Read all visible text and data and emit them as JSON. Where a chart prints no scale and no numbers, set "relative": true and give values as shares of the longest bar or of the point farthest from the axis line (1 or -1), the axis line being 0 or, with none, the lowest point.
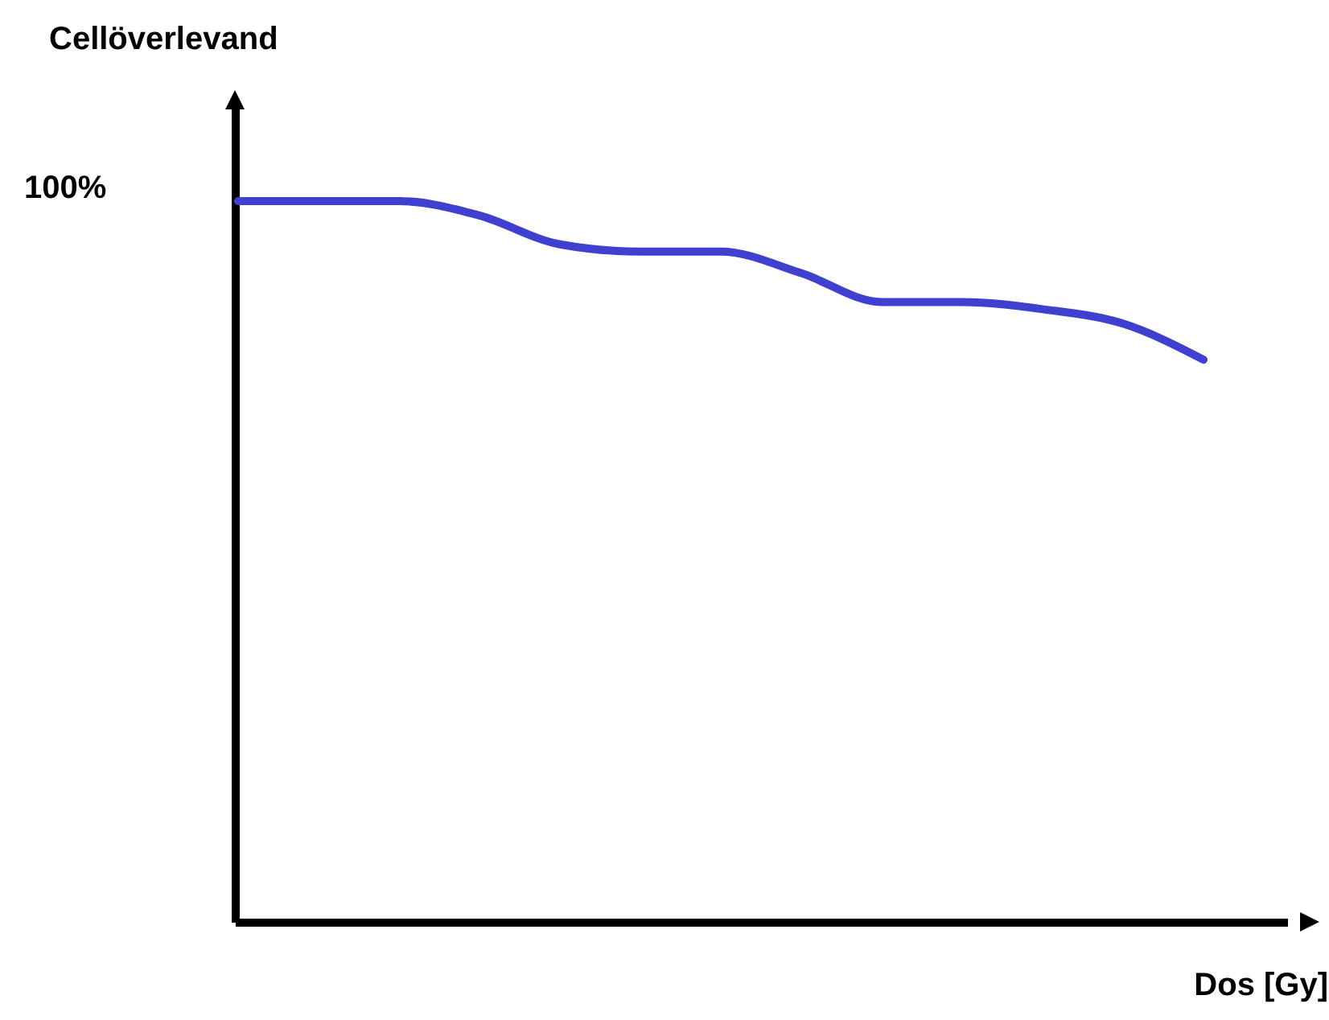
{
  "chart_data": {
    "type": "line",
    "relative": true,
    "xlabel": "Dos [Gy]",
    "ylabel": "Cellöverlevand",
    "annotations": [
      "100%"
    ],
    "categories": [
      null,
      null,
      null,
      null,
      null,
      null,
      null,
      null,
      null,
      null,
      null,
      null,
      null
    ],
    "series": [
      {
        "color": "#4040d0",
        "values": [
          1,
          1,
          1,
          0.98,
          0.94,
          0.93,
          0.93,
          0.9,
          0.86,
          0.86,
          0.85,
          0.83,
          0.78
        ]
      }
    ],
    "line_style": "solid"
  }
}
